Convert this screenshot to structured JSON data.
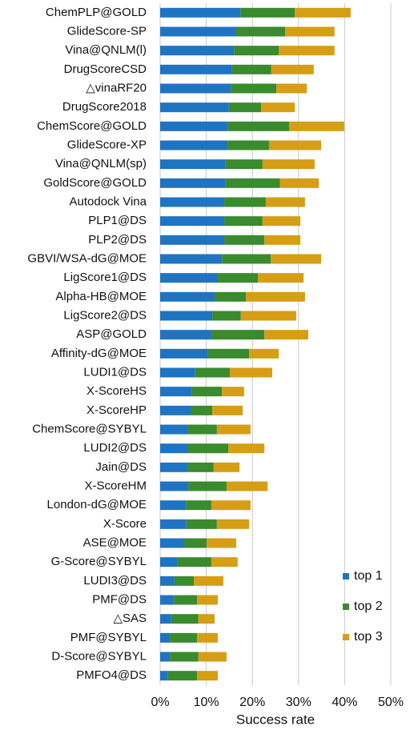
{
  "chart_data": {
    "type": "stacked-bar-horizontal",
    "x_label": "Success rate",
    "categories": [
      "ChemPLP@GOLD",
      "GlideScore-SP",
      "Vina@QNLM(l)",
      "DrugScoreCSD",
      "△vinaRF20",
      "DrugScore2018",
      "ChemScore@GOLD",
      "GlideScore-XP",
      "Vina@QNLM(sp)",
      "GoldScore@GOLD",
      "Autodock Vina",
      "PLP1@DS",
      "PLP2@DS",
      "GBVI/WSA-dG@MOE",
      "LigScore1@DS",
      "Alpha-HB@MOE",
      "LigScore2@DS",
      "ASP@GOLD",
      "Affinity-dG@MOE",
      "LUDI1@DS",
      "X-ScoreHS",
      "X-ScoreHP",
      "ChemScore@SYBYL",
      "LUDI2@DS",
      "Jain@DS",
      "X-ScoreHM",
      "London-dG@MOE",
      "X-Score",
      "ASE@MOE",
      "G-Score@SYBYL",
      "LUDI3@DS",
      "PMF@DS",
      "△SAS",
      "PMF@SYBYL",
      "D-Score@SYBYL",
      "PMFO4@DS"
    ],
    "series": [
      {
        "name": "top 1",
        "color": "#1f74c2",
        "values": [
          17.4,
          16.5,
          16.0,
          15.6,
          15.3,
          14.9,
          14.6,
          14.6,
          14.2,
          14.1,
          13.9,
          13.9,
          13.9,
          13.4,
          12.5,
          11.8,
          11.3,
          11.1,
          10.4,
          7.6,
          6.9,
          6.6,
          5.9,
          5.9,
          5.9,
          6.1,
          5.6,
          5.7,
          5.2,
          3.8,
          3.1,
          3.0,
          2.4,
          2.1,
          2.1,
          1.7
        ]
      },
      {
        "name": "top 2",
        "color": "#3a8a2e",
        "values": [
          11.8,
          10.6,
          9.7,
          8.5,
          9.9,
          7.0,
          13.4,
          9.0,
          8.0,
          11.9,
          9.0,
          8.3,
          8.7,
          10.6,
          8.7,
          6.8,
          6.2,
          11.5,
          8.9,
          7.5,
          6.5,
          4.7,
          6.4,
          8.9,
          5.7,
          8.3,
          5.5,
          6.6,
          4.9,
          7.3,
          4.2,
          5.0,
          5.9,
          5.9,
          6.2,
          6.3
        ]
      },
      {
        "name": "top 3",
        "color": "#d69e15",
        "values": [
          12.1,
          10.7,
          12.1,
          9.2,
          6.6,
          7.3,
          11.9,
          11.3,
          11.3,
          8.4,
          8.5,
          8.2,
          7.8,
          10.9,
          9.9,
          12.8,
          12.0,
          9.5,
          6.4,
          9.2,
          4.8,
          6.6,
          7.3,
          7.8,
          5.6,
          8.9,
          8.5,
          7.0,
          6.4,
          5.7,
          6.4,
          4.5,
          3.5,
          4.5,
          6.1,
          4.5
        ]
      }
    ],
    "xlim": [
      0,
      50
    ],
    "xticks": [
      {
        "value": 0,
        "label": "0%"
      },
      {
        "value": 10,
        "label": "10%"
      },
      {
        "value": 20,
        "label": "20%"
      },
      {
        "value": 30,
        "label": "30%"
      },
      {
        "value": 40,
        "label": "40%"
      },
      {
        "value": 50,
        "label": "50%"
      }
    ],
    "grid": true,
    "legend": "lower right"
  }
}
